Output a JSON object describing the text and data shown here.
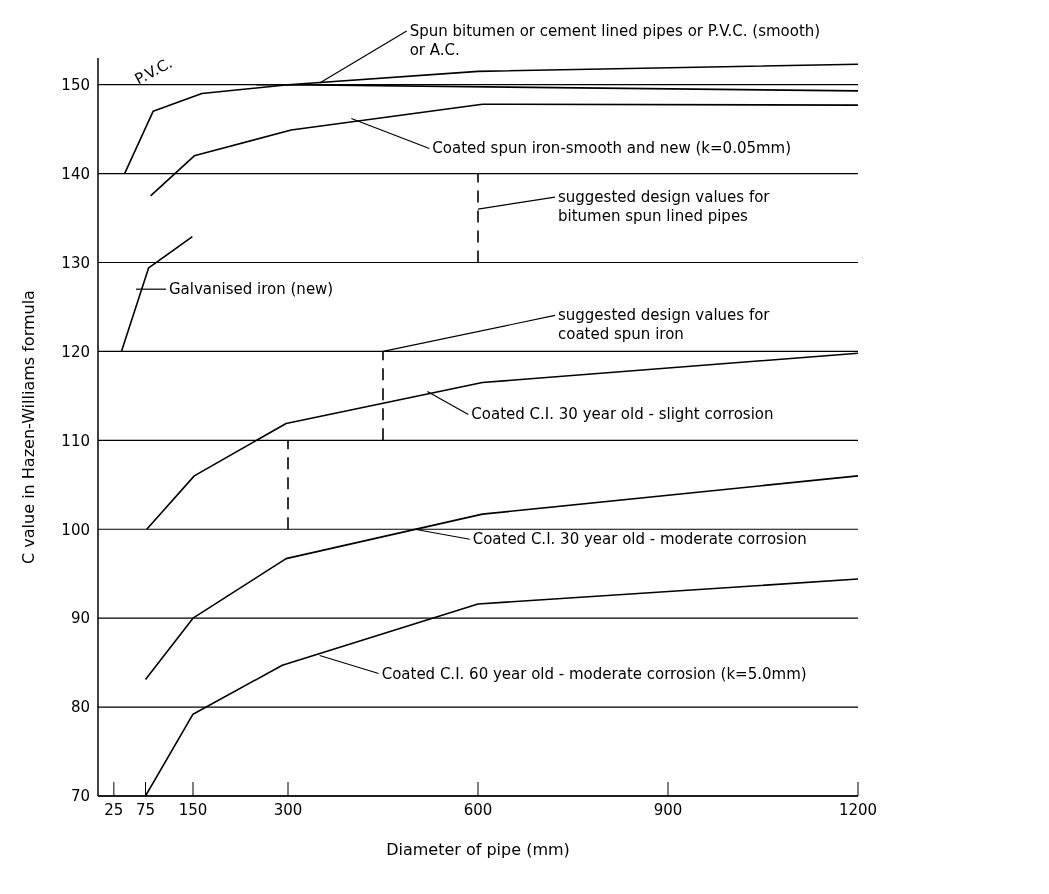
{
  "chart_data": {
    "type": "line",
    "xlabel": "Diameter of pipe (mm)",
    "ylabel": "C value in Hazen-Williams formula",
    "xlim": [
      0,
      1200
    ],
    "xticks": [
      25,
      75,
      150,
      300,
      600,
      900,
      1200
    ],
    "ylim": [
      70,
      153
    ],
    "yticks": [
      70,
      80,
      90,
      100,
      110,
      120,
      130,
      140,
      150
    ],
    "grid": "y",
    "marker": "none",
    "line_style": "solid",
    "series": [
      {
        "color": "#000000",
        "x": [
          250,
          300,
          600,
          1200
        ],
        "values": [
          150,
          150,
          151.5,
          152.3
        ]
      },
      {
        "color": "#000000",
        "x": [
          42,
          87,
          164,
          300,
          1200
        ],
        "values": [
          140,
          147,
          149,
          150,
          149.3
        ]
      },
      {
        "color": "#000000",
        "x": [
          83,
          152,
          305,
          607,
          1200
        ],
        "values": [
          137.5,
          142,
          144.9,
          147.8,
          147.7
        ]
      },
      {
        "color": "#000000",
        "x": [
          37,
          80,
          149
        ],
        "values": [
          120,
          129.4,
          132.9
        ]
      },
      {
        "color": "#000000",
        "x": [
          77,
          152,
          297,
          607,
          1200
        ],
        "values": [
          100,
          106,
          111.9,
          116.5,
          119.8
        ]
      },
      {
        "color": "#000000",
        "x": [
          75,
          150,
          297,
          607,
          1200
        ],
        "values": [
          83.1,
          90,
          96.7,
          101.7,
          106
        ]
      },
      {
        "color": "#000000",
        "x": [
          75,
          150,
          291,
          600,
          1200
        ],
        "values": [
          70,
          79.2,
          84.7,
          91.6,
          94.4
        ]
      },
      {
        "color": "#000000",
        "line_style": "dashed",
        "x": [
          600,
          600
        ],
        "values": [
          130,
          140
        ]
      },
      {
        "color": "#000000",
        "line_style": "dashed",
        "x": [
          450,
          450
        ],
        "values": [
          110,
          120
        ]
      },
      {
        "color": "#000000",
        "line_style": "dashed",
        "x": [
          300,
          300
        ],
        "values": [
          100,
          110
        ]
      }
    ],
    "annotations": [
      {
        "text": "Spun bitumen or cement lined pipes or P.V.C. (smooth)\nor A.C.",
        "x": 350,
        "y": 150.2
      },
      {
        "text": "P.V.C.",
        "x": 120,
        "y": 148
      },
      {
        "text": "Coated spun iron-smooth and new (k=0.05mm)",
        "x": 400,
        "y": 146.2
      },
      {
        "text": "suggested design values for\nbitumen spun lined pipes",
        "x": 600,
        "y": 136
      },
      {
        "text": "Galvanised iron (new)",
        "x": 60,
        "y": 127
      },
      {
        "text": "suggested design values for\ncoated spun iron",
        "x": 450,
        "y": 120
      },
      {
        "text": "Coated C.I. 30 year old - slight corrosion",
        "x": 520,
        "y": 115.5
      },
      {
        "text": "Coated C.I. 30 year old - moderate corrosion",
        "x": 500,
        "y": 100
      },
      {
        "text": "Coated C.I. 60 year old - moderate corrosion (k=5.0mm)",
        "x": 350,
        "y": 85.8
      }
    ]
  }
}
